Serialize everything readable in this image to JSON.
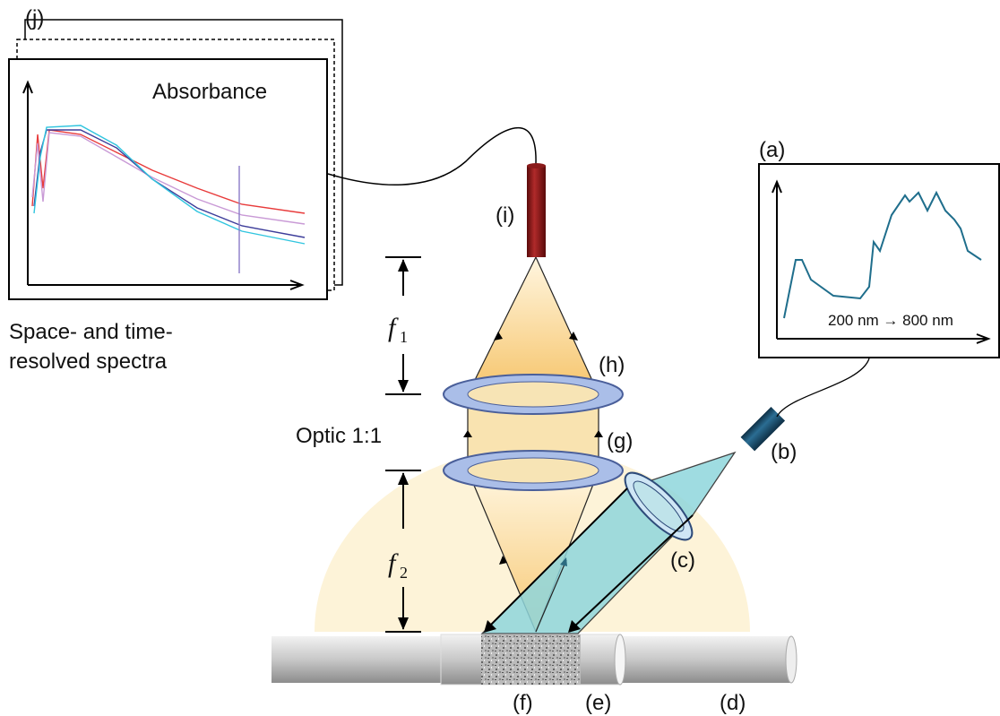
{
  "spectrometer": {
    "label": "(j)",
    "title": "Absorbance",
    "caption": [
      "Space- and time-",
      "resolved spectra"
    ]
  },
  "source_spectrum": {
    "label": "(a)",
    "range": "200 nm → 800 nm"
  },
  "components": {
    "fiber_detector": "(i)",
    "lens_top": "(h)",
    "lens_bottom": "(g)",
    "fiber_source": "(b)",
    "lens_source": "(c)",
    "sample": "(f)",
    "sleeve": "(e)",
    "tube": "(d)"
  },
  "optics": {
    "label": "Optic 1:1",
    "f1": {
      "symbol": "f",
      "index": "1"
    },
    "f2": {
      "symbol": "f",
      "index": "2"
    }
  }
}
